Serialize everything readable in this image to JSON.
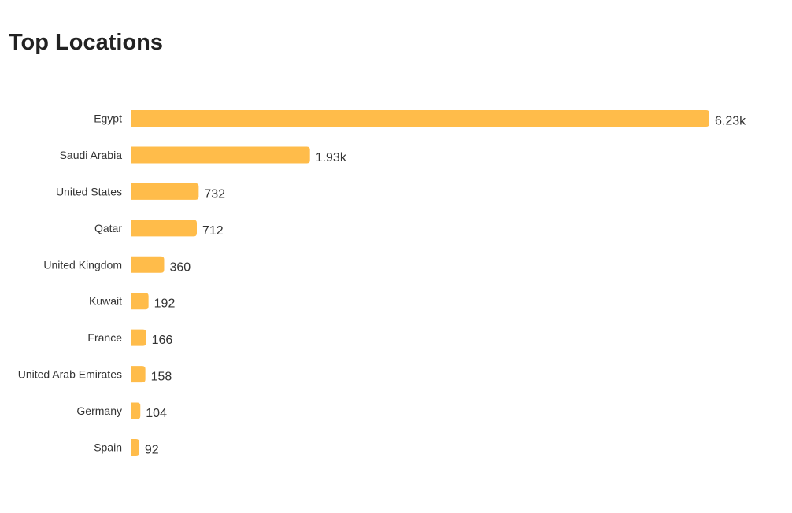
{
  "chart_data": {
    "type": "bar",
    "orientation": "horizontal",
    "title": "Top Locations",
    "categories": [
      "Egypt",
      "Saudi Arabia",
      "United States",
      "Qatar",
      "United Kingdom",
      "Kuwait",
      "France",
      "United Arab Emirates",
      "Germany",
      "Spain"
    ],
    "values": [
      6230,
      1930,
      732,
      712,
      360,
      192,
      166,
      158,
      104,
      92
    ],
    "value_labels": [
      "6.23k",
      "1.93k",
      "732",
      "712",
      "360",
      "192",
      "166",
      "158",
      "104",
      "92"
    ],
    "xlabel": "",
    "ylabel": "",
    "grid": false,
    "legend": "none",
    "bar_color": "#FFBC4A"
  }
}
